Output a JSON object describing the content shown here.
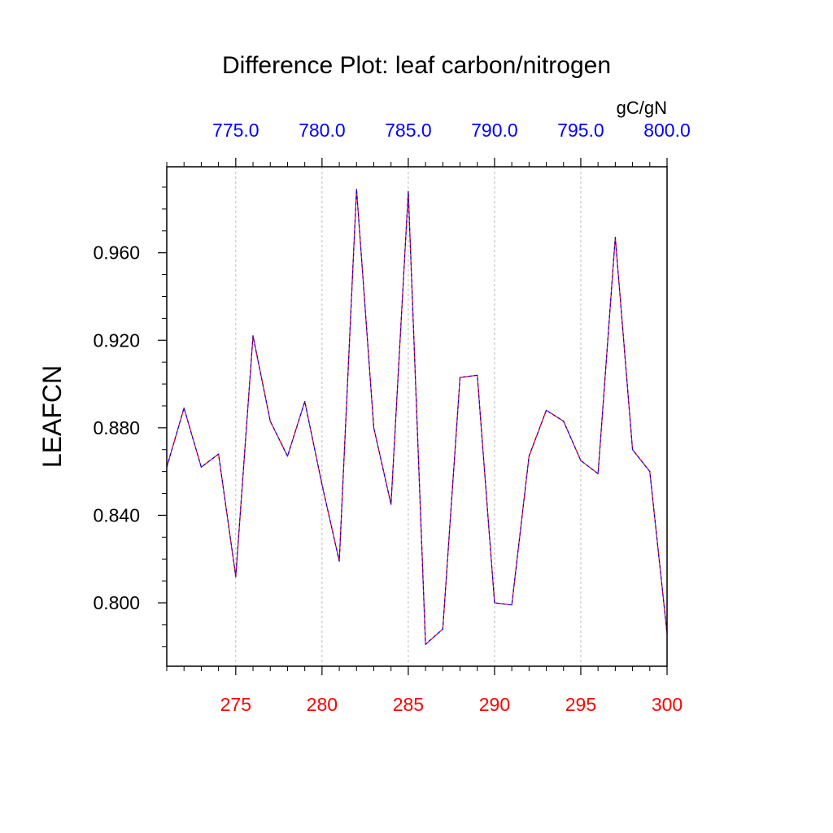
{
  "chart_data": {
    "type": "line",
    "title": "Difference Plot: leaf carbon/nitrogen",
    "ylabel": "LEAFCN",
    "units": "gC/gN",
    "x_bottom": {
      "range": [
        271,
        300
      ],
      "ticks": [
        275,
        280,
        285,
        290,
        295,
        300
      ],
      "tick_labels": [
        "275",
        "280",
        "285",
        "290",
        "295",
        "300"
      ],
      "color": "#ff0000"
    },
    "x_top": {
      "range": [
        771,
        800
      ],
      "ticks": [
        775,
        780,
        785,
        790,
        795,
        800
      ],
      "tick_labels": [
        "775.0",
        "780.0",
        "785.0",
        "790.0",
        "795.0",
        "800.0"
      ],
      "color": "#0000ff"
    },
    "y": {
      "range": [
        0.771,
        0.9993
      ],
      "ticks": [
        0.8,
        0.84,
        0.88,
        0.92,
        0.96
      ],
      "tick_labels": [
        "0.800",
        "0.840",
        "0.880",
        "0.920",
        "0.960"
      ]
    },
    "vertical_gridlines": true,
    "series": [
      {
        "name": "difference",
        "line_colors": [
          "#ff0000",
          "#0000ff"
        ],
        "x": [
          271,
          272,
          273,
          274,
          275,
          276,
          277,
          278,
          279,
          280,
          281,
          282,
          283,
          284,
          285,
          286,
          287,
          288,
          289,
          290,
          291,
          292,
          293,
          294,
          295,
          296,
          297,
          298,
          299,
          300
        ],
        "values": [
          0.862,
          0.889,
          0.862,
          0.868,
          0.812,
          0.922,
          0.883,
          0.867,
          0.892,
          0.854,
          0.819,
          0.989,
          0.88,
          0.845,
          0.988,
          0.781,
          0.788,
          0.903,
          0.904,
          0.8,
          0.799,
          0.867,
          0.888,
          0.883,
          0.865,
          0.859,
          0.967,
          0.87,
          0.86,
          0.786
        ]
      }
    ]
  }
}
